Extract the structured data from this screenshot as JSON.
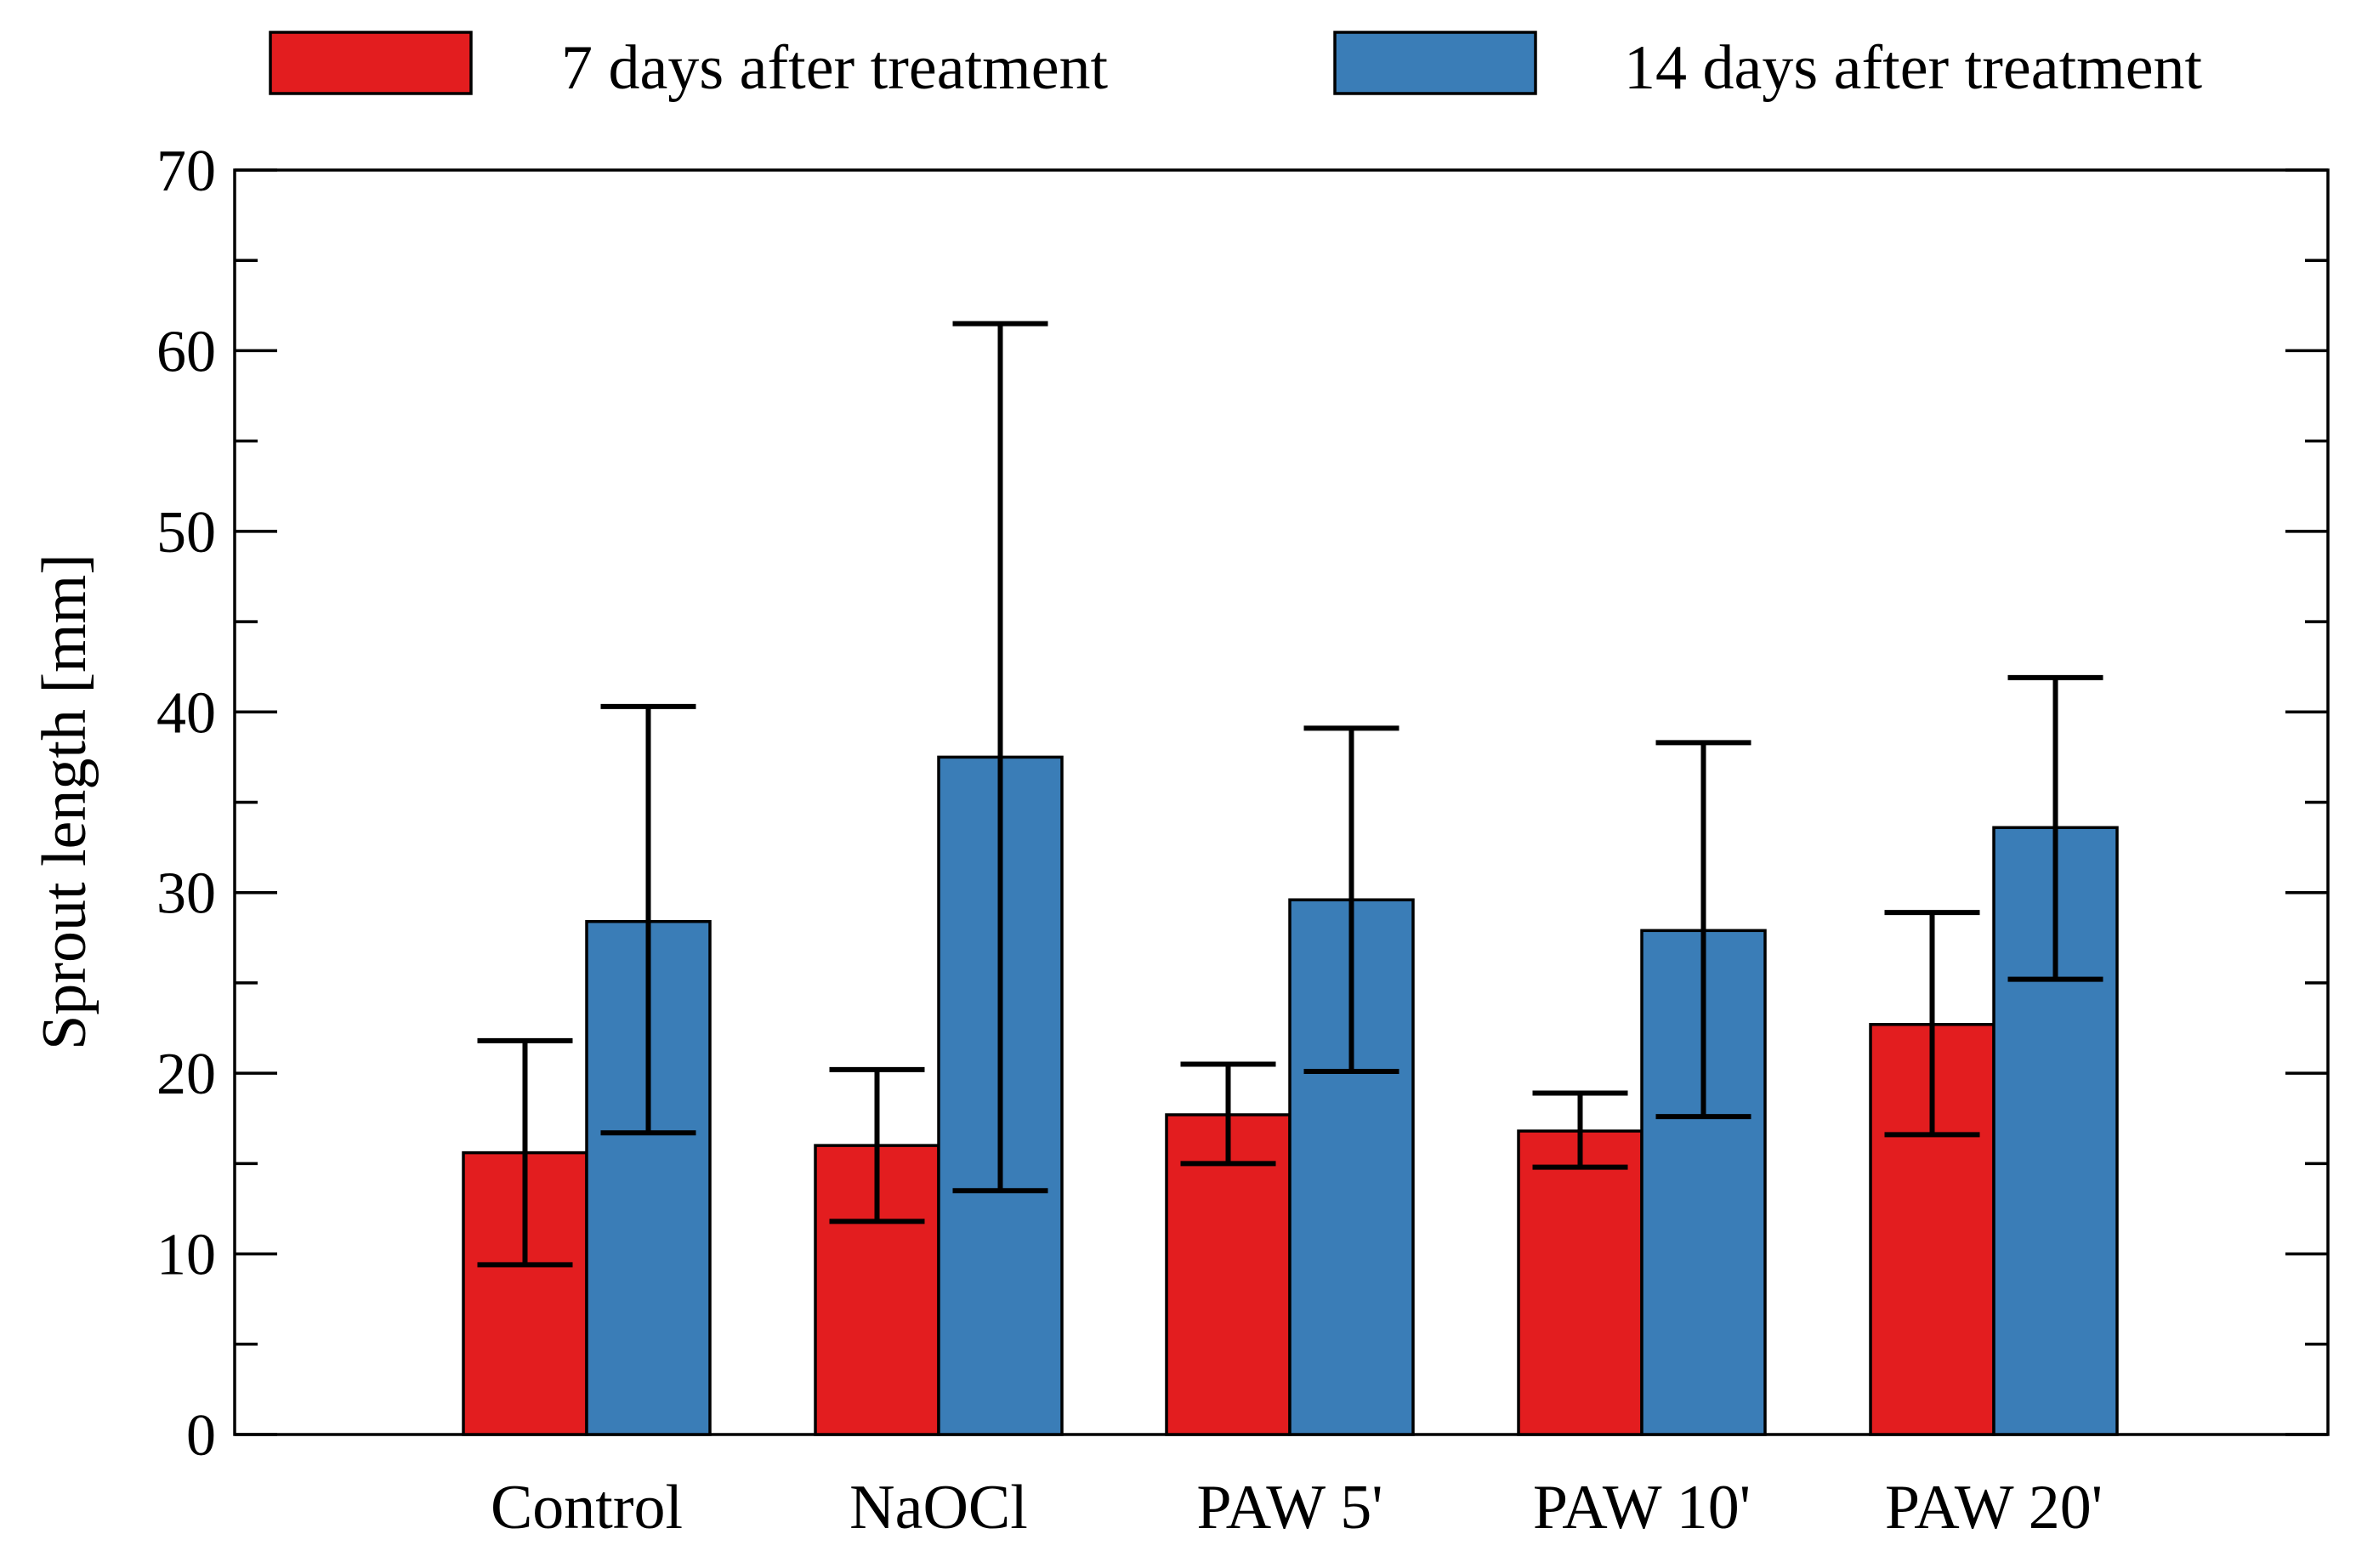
{
  "chart_data": {
    "type": "bar",
    "title": "",
    "xlabel": "",
    "ylabel": "Sprout length [mm]",
    "ylim": [
      0,
      70
    ],
    "yticks": [
      0,
      10,
      20,
      30,
      40,
      50,
      60,
      70
    ],
    "grid": false,
    "legend_position": "top",
    "categories": [
      "Control",
      "NaOCl",
      "PAW 5'",
      "PAW 10'",
      "PAW 20'"
    ],
    "series": [
      {
        "name": "7 days after treatment",
        "color": "#e31d1f",
        "values": [
          15.6,
          16.0,
          17.7,
          16.8,
          22.7
        ],
        "error_low": [
          9.4,
          11.8,
          15.0,
          14.8,
          16.6
        ],
        "error_high": [
          21.8,
          20.2,
          20.5,
          18.9,
          28.9
        ]
      },
      {
        "name": "14 days after treatment",
        "color": "#3a7db7",
        "values": [
          28.4,
          37.5,
          29.6,
          27.9,
          33.6
        ],
        "error_low": [
          16.7,
          13.5,
          20.1,
          17.6,
          25.2
        ],
        "error_high": [
          40.3,
          61.5,
          39.1,
          38.3,
          41.9
        ]
      }
    ]
  }
}
